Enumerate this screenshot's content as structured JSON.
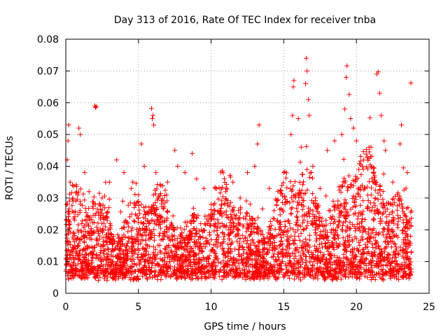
{
  "chart_data": {
    "type": "scatter",
    "title": "Day 313 of 2016, Rate Of TEC Index for receiver tnba",
    "xlabel": "GPS time / hours",
    "ylabel": "ROTI / TECUs",
    "xlim": [
      0,
      25
    ],
    "ylim": [
      0,
      0.08
    ],
    "grid": true,
    "marker": "+",
    "colors": {
      "series": "#ff0000",
      "grid": "#a0a0a0",
      "axis": "#000000"
    },
    "x_ticks": [
      {
        "value": 0,
        "label": "0"
      },
      {
        "value": 5,
        "label": "5"
      },
      {
        "value": 10,
        "label": "10"
      },
      {
        "value": 15,
        "label": "15"
      },
      {
        "value": 20,
        "label": "20"
      },
      {
        "value": 25,
        "label": "25"
      }
    ],
    "y_ticks": [
      {
        "value": 0,
        "label": "0"
      },
      {
        "value": 0.01,
        "label": "0.01"
      },
      {
        "value": 0.02,
        "label": "0.02"
      },
      {
        "value": 0.03,
        "label": "0.03"
      },
      {
        "value": 0.04,
        "label": "0.04"
      },
      {
        "value": 0.05,
        "label": "0.05"
      },
      {
        "value": 0.06,
        "label": "0.06"
      },
      {
        "value": 0.07,
        "label": "0.07"
      },
      {
        "value": 0.08,
        "label": "0.08"
      }
    ],
    "points": [
      [
        0.05,
        0.028
      ],
      [
        0.1,
        0.042
      ],
      [
        0.15,
        0.048
      ],
      [
        0.2,
        0.053
      ],
      [
        0.3,
        0.035
      ],
      [
        0.5,
        0.029
      ],
      [
        0.9,
        0.052
      ],
      [
        1.0,
        0.05
      ],
      [
        1.3,
        0.038
      ],
      [
        1.6,
        0.032
      ],
      [
        2.0,
        0.059
      ],
      [
        2.05,
        0.0585
      ],
      [
        2.1,
        0.0588
      ],
      [
        2.5,
        0.03
      ],
      [
        3.0,
        0.035
      ],
      [
        3.5,
        0.042
      ],
      [
        4.0,
        0.038
      ],
      [
        4.5,
        0.033
      ],
      [
        5.0,
        0.031
      ],
      [
        5.2,
        0.047
      ],
      [
        5.4,
        0.04
      ],
      [
        5.9,
        0.0582
      ],
      [
        5.95,
        0.055
      ],
      [
        6.0,
        0.056
      ],
      [
        6.05,
        0.053
      ],
      [
        6.2,
        0.038
      ],
      [
        7.0,
        0.035
      ],
      [
        7.5,
        0.045
      ],
      [
        7.7,
        0.04
      ],
      [
        8.2,
        0.038
      ],
      [
        8.7,
        0.044
      ],
      [
        9.0,
        0.036
      ],
      [
        9.5,
        0.033
      ],
      [
        10.0,
        0.028
      ],
      [
        11.0,
        0.032
      ],
      [
        11.5,
        0.035
      ],
      [
        12.0,
        0.03
      ],
      [
        12.5,
        0.038
      ],
      [
        13.0,
        0.04
      ],
      [
        13.2,
        0.047
      ],
      [
        13.3,
        0.053
      ],
      [
        14.0,
        0.033
      ],
      [
        15.0,
        0.038
      ],
      [
        15.5,
        0.05
      ],
      [
        15.6,
        0.056
      ],
      [
        15.65,
        0.065
      ],
      [
        15.7,
        0.067
      ],
      [
        16.0,
        0.055
      ],
      [
        16.2,
        0.046
      ],
      [
        16.5,
        0.066
      ],
      [
        16.55,
        0.074
      ],
      [
        16.6,
        0.07
      ],
      [
        16.7,
        0.061
      ],
      [
        16.75,
        0.056
      ],
      [
        17.0,
        0.04
      ],
      [
        17.5,
        0.033
      ],
      [
        18.0,
        0.045
      ],
      [
        18.5,
        0.048
      ],
      [
        19.0,
        0.05
      ],
      [
        19.2,
        0.058
      ],
      [
        19.3,
        0.068
      ],
      [
        19.35,
        0.0716
      ],
      [
        19.5,
        0.0626
      ],
      [
        19.6,
        0.055
      ],
      [
        19.8,
        0.052
      ],
      [
        20.0,
        0.048
      ],
      [
        20.5,
        0.042
      ],
      [
        21.0,
        0.046
      ],
      [
        21.4,
        0.069
      ],
      [
        21.5,
        0.0697
      ],
      [
        21.6,
        0.063
      ],
      [
        21.7,
        0.056
      ],
      [
        21.9,
        0.048
      ],
      [
        22.0,
        0.045
      ],
      [
        22.5,
        0.035
      ],
      [
        23.0,
        0.047
      ],
      [
        23.1,
        0.053
      ],
      [
        23.5,
        0.038
      ],
      [
        23.75,
        0.0662
      ]
    ],
    "dense_regions_note_excluded": true
  }
}
